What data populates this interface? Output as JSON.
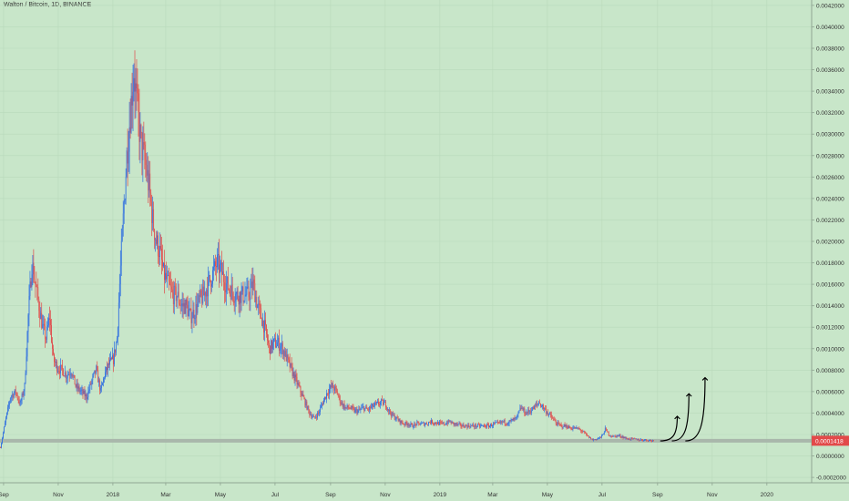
{
  "chart_data": {
    "type": "candlestick",
    "title": "Walton / Bitcoin, 1D, BINANCE",
    "background_color": "#c8e6c9",
    "up_color": "#2f6fe0",
    "down_color": "#e04a4a",
    "current_price": 0.0001418,
    "current_price_label": "0.0001418",
    "current_price_color": "#e24a4a",
    "support_line_price": 0.0001418,
    "support_line_color": "#a9b7ab",
    "ylim": [
      -0.00025,
      0.00425
    ],
    "y_ticks": [
      {
        "value": 0.0042,
        "label": "0.0042000"
      },
      {
        "value": 0.004,
        "label": "0.0040000"
      },
      {
        "value": 0.0038,
        "label": "0.0038000"
      },
      {
        "value": 0.0036,
        "label": "0.0036000"
      },
      {
        "value": 0.0034,
        "label": "0.0034000"
      },
      {
        "value": 0.0032,
        "label": "0.0032000"
      },
      {
        "value": 0.003,
        "label": "0.0030000"
      },
      {
        "value": 0.0028,
        "label": "0.0028000"
      },
      {
        "value": 0.0026,
        "label": "0.0026000"
      },
      {
        "value": 0.0024,
        "label": "0.0024000"
      },
      {
        "value": 0.0022,
        "label": "0.0022000"
      },
      {
        "value": 0.002,
        "label": "0.0020000"
      },
      {
        "value": 0.0018,
        "label": "0.0018000"
      },
      {
        "value": 0.0016,
        "label": "0.0016000"
      },
      {
        "value": 0.0014,
        "label": "0.0014000"
      },
      {
        "value": 0.0012,
        "label": "0.0012000"
      },
      {
        "value": 0.001,
        "label": "0.0010000"
      },
      {
        "value": 0.0008,
        "label": "0.0008000"
      },
      {
        "value": 0.0006,
        "label": "0.0006000"
      },
      {
        "value": 0.0004,
        "label": "0.0004000"
      },
      {
        "value": 0.0002,
        "label": "0.0002000"
      },
      {
        "value": 0.0,
        "label": "0.0000000"
      },
      {
        "value": -0.0002,
        "label": "-0.0002000"
      }
    ],
    "xlim": [
      "2017-08-28",
      "2020-02-20"
    ],
    "x_ticks": [
      {
        "date": "2017-09-01",
        "label": "Sep"
      },
      {
        "date": "2017-11-01",
        "label": "Nov"
      },
      {
        "date": "2018-01-01",
        "label": "2018"
      },
      {
        "date": "2018-03-01",
        "label": "Mar"
      },
      {
        "date": "2018-05-01",
        "label": "May"
      },
      {
        "date": "2018-07-01",
        "label": "Jul"
      },
      {
        "date": "2018-09-01",
        "label": "Sep"
      },
      {
        "date": "2018-11-01",
        "label": "Nov"
      },
      {
        "date": "2019-01-01",
        "label": "2019"
      },
      {
        "date": "2019-03-01",
        "label": "Mar"
      },
      {
        "date": "2019-05-01",
        "label": "May"
      },
      {
        "date": "2019-07-01",
        "label": "Jul"
      },
      {
        "date": "2019-09-01",
        "label": "Sep"
      },
      {
        "date": "2019-11-01",
        "label": "Nov"
      },
      {
        "date": "2020-01-01",
        "label": "2020"
      }
    ],
    "price_path": [
      [
        "2017-08-28",
        8e-05
      ],
      [
        "2017-09-03",
        0.00035
      ],
      [
        "2017-09-08",
        0.00055
      ],
      [
        "2017-09-14",
        0.0006
      ],
      [
        "2017-09-19",
        0.00048
      ],
      [
        "2017-09-24",
        0.00065
      ],
      [
        "2017-09-28",
        0.0013
      ],
      [
        "2017-10-02",
        0.0018
      ],
      [
        "2017-10-06",
        0.0016
      ],
      [
        "2017-10-10",
        0.0014
      ],
      [
        "2017-10-14",
        0.0012
      ],
      [
        "2017-10-18",
        0.0011
      ],
      [
        "2017-10-22",
        0.0013
      ],
      [
        "2017-10-26",
        0.0009
      ],
      [
        "2017-10-31",
        0.00082
      ],
      [
        "2017-11-05",
        0.0008
      ],
      [
        "2017-11-10",
        0.00075
      ],
      [
        "2017-11-15",
        0.0008
      ],
      [
        "2017-11-20",
        0.00065
      ],
      [
        "2017-11-26",
        0.0006
      ],
      [
        "2017-12-02",
        0.00055
      ],
      [
        "2017-12-08",
        0.0007
      ],
      [
        "2017-12-13",
        0.0008
      ],
      [
        "2017-12-18",
        0.0006
      ],
      [
        "2017-12-22",
        0.00075
      ],
      [
        "2017-12-27",
        0.00085
      ],
      [
        "2018-01-01",
        0.0009
      ],
      [
        "2018-01-05",
        0.0011
      ],
      [
        "2018-01-08",
        0.0016
      ],
      [
        "2018-01-12",
        0.0022
      ],
      [
        "2018-01-16",
        0.0028
      ],
      [
        "2018-01-20",
        0.0032
      ],
      [
        "2018-01-24",
        0.0036
      ],
      [
        "2018-01-28",
        0.0032
      ],
      [
        "2018-02-01",
        0.0029
      ],
      [
        "2018-02-06",
        0.0027
      ],
      [
        "2018-02-10",
        0.0025
      ],
      [
        "2018-02-14",
        0.0022
      ],
      [
        "2018-02-18",
        0.002
      ],
      [
        "2018-02-22",
        0.0019
      ],
      [
        "2018-02-26",
        0.0017
      ],
      [
        "2018-03-03",
        0.0016
      ],
      [
        "2018-03-08",
        0.0015
      ],
      [
        "2018-03-13",
        0.0015
      ],
      [
        "2018-03-18",
        0.0014
      ],
      [
        "2018-03-23",
        0.0014
      ],
      [
        "2018-03-28",
        0.0013
      ],
      [
        "2018-04-02",
        0.00135
      ],
      [
        "2018-04-07",
        0.00145
      ],
      [
        "2018-04-12",
        0.0015
      ],
      [
        "2018-04-17",
        0.0016
      ],
      [
        "2018-04-22",
        0.0017
      ],
      [
        "2018-04-27",
        0.0018
      ],
      [
        "2018-05-02",
        0.0017
      ],
      [
        "2018-05-07",
        0.0016
      ],
      [
        "2018-05-12",
        0.00155
      ],
      [
        "2018-05-17",
        0.0015
      ],
      [
        "2018-05-22",
        0.0015
      ],
      [
        "2018-05-27",
        0.0015
      ],
      [
        "2018-06-01",
        0.0015
      ],
      [
        "2018-06-06",
        0.0016
      ],
      [
        "2018-06-11",
        0.0014
      ],
      [
        "2018-06-15",
        0.0013
      ],
      [
        "2018-06-19",
        0.0012
      ],
      [
        "2018-06-24",
        0.001
      ],
      [
        "2018-06-29",
        0.00105
      ],
      [
        "2018-07-04",
        0.00105
      ],
      [
        "2018-07-09",
        0.001
      ],
      [
        "2018-07-14",
        0.0009
      ],
      [
        "2018-07-19",
        0.0008
      ],
      [
        "2018-07-24",
        0.0007
      ],
      [
        "2018-07-29",
        0.0006
      ],
      [
        "2018-08-03",
        0.0005
      ],
      [
        "2018-08-08",
        0.0004
      ],
      [
        "2018-08-13",
        0.00035
      ],
      [
        "2018-08-18",
        0.0004
      ],
      [
        "2018-08-23",
        0.0005
      ],
      [
        "2018-08-28",
        0.0006
      ],
      [
        "2018-09-02",
        0.00065
      ],
      [
        "2018-09-07",
        0.0006
      ],
      [
        "2018-09-12",
        0.0005
      ],
      [
        "2018-09-17",
        0.00045
      ],
      [
        "2018-09-22",
        0.00045
      ],
      [
        "2018-09-27",
        0.00042
      ],
      [
        "2018-10-02",
        0.00042
      ],
      [
        "2018-10-07",
        0.00045
      ],
      [
        "2018-10-12",
        0.00043
      ],
      [
        "2018-10-17",
        0.00046
      ],
      [
        "2018-10-22",
        0.00048
      ],
      [
        "2018-10-27",
        0.0005
      ],
      [
        "2018-11-01",
        0.00048
      ],
      [
        "2018-11-06",
        0.0004
      ],
      [
        "2018-11-11",
        0.00036
      ],
      [
        "2018-11-16",
        0.00033
      ],
      [
        "2018-11-21",
        0.0003
      ],
      [
        "2018-11-26",
        0.0003
      ],
      [
        "2018-12-01",
        0.00028
      ],
      [
        "2018-12-06",
        0.0003
      ],
      [
        "2018-12-11",
        0.0003
      ],
      [
        "2018-12-16",
        0.0003
      ],
      [
        "2018-12-21",
        0.00032
      ],
      [
        "2018-12-26",
        0.00031
      ],
      [
        "2019-01-01",
        0.0003
      ],
      [
        "2019-01-06",
        0.0003
      ],
      [
        "2019-01-11",
        0.00032
      ],
      [
        "2019-01-16",
        0.0003
      ],
      [
        "2019-01-21",
        0.00029
      ],
      [
        "2019-01-26",
        0.00028
      ],
      [
        "2019-01-31",
        0.00028
      ],
      [
        "2019-02-05",
        0.00028
      ],
      [
        "2019-02-10",
        0.00028
      ],
      [
        "2019-02-15",
        0.00028
      ],
      [
        "2019-02-20",
        0.00028
      ],
      [
        "2019-02-25",
        0.00028
      ],
      [
        "2019-03-02",
        0.0003
      ],
      [
        "2019-03-07",
        0.0003
      ],
      [
        "2019-03-12",
        0.00032
      ],
      [
        "2019-03-17",
        0.00031
      ],
      [
        "2019-03-22",
        0.00033
      ],
      [
        "2019-03-27",
        0.00035
      ],
      [
        "2019-04-01",
        0.00045
      ],
      [
        "2019-04-06",
        0.0004
      ],
      [
        "2019-04-11",
        0.00042
      ],
      [
        "2019-04-16",
        0.00045
      ],
      [
        "2019-04-21",
        0.0005
      ],
      [
        "2019-04-26",
        0.00045
      ],
      [
        "2019-05-01",
        0.0004
      ],
      [
        "2019-05-06",
        0.00035
      ],
      [
        "2019-05-11",
        0.0003
      ],
      [
        "2019-05-16",
        0.00028
      ],
      [
        "2019-05-21",
        0.00028
      ],
      [
        "2019-05-26",
        0.00026
      ],
      [
        "2019-05-31",
        0.00026
      ],
      [
        "2019-06-05",
        0.00025
      ],
      [
        "2019-06-10",
        0.00022
      ],
      [
        "2019-06-15",
        0.00018
      ],
      [
        "2019-06-20",
        0.00015
      ],
      [
        "2019-06-25",
        0.00016
      ],
      [
        "2019-06-30",
        0.00018
      ],
      [
        "2019-07-04",
        0.00025
      ],
      [
        "2019-07-08",
        0.0002
      ],
      [
        "2019-07-13",
        0.00018
      ],
      [
        "2019-07-18",
        0.00019
      ],
      [
        "2019-07-23",
        0.00018
      ],
      [
        "2019-07-28",
        0.00016
      ],
      [
        "2019-08-02",
        0.00016
      ],
      [
        "2019-08-07",
        0.000155
      ],
      [
        "2019-08-12",
        0.00015
      ],
      [
        "2019-08-17",
        0.00015
      ],
      [
        "2019-08-22",
        0.000145
      ],
      [
        "2019-08-27",
        0.0001418
      ]
    ],
    "projection_arrows": [
      {
        "start": [
          "2019-09-04",
          0.00014
        ],
        "end": [
          "2019-09-23",
          0.00037
        ]
      },
      {
        "start": [
          "2019-09-17",
          0.00014
        ],
        "end": [
          "2019-10-06",
          0.00058
        ]
      },
      {
        "start": [
          "2019-10-02",
          0.00014
        ],
        "end": [
          "2019-10-24",
          0.00073
        ]
      }
    ]
  }
}
